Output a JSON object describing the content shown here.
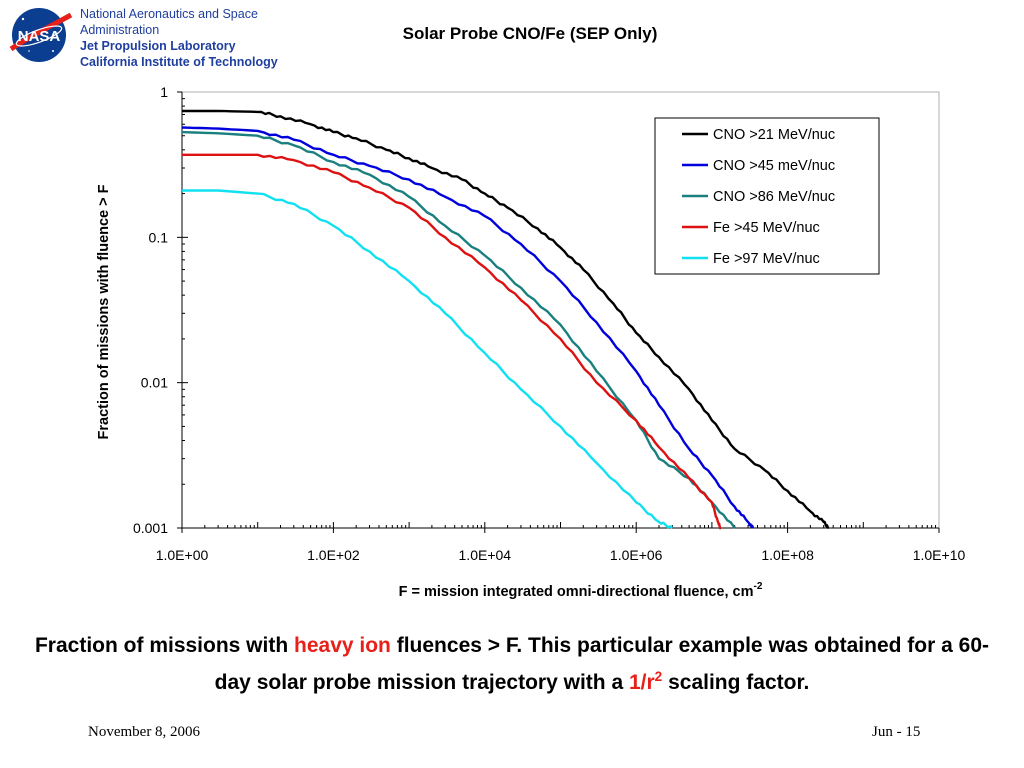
{
  "header": {
    "logo_text": "NASA",
    "org_line1": "National Aeronautics and Space",
    "org_line2": "Administration",
    "org_line3": "Jet Propulsion Laboratory",
    "org_line4": "California Institute of Technology"
  },
  "colors": {
    "org_blue": "#1f3f9f",
    "highlight_red": "#e8201a",
    "nasa_blue": "#0b3d91"
  },
  "chart_data": {
    "type": "line",
    "title": "Solar Probe CNO/Fe (SEP Only)",
    "xlabel": "F = mission integrated omni-directional fluence, cm",
    "xlabel_sup": "-2",
    "ylabel": "Fraction of missions with fluence > F",
    "xscale": "log",
    "yscale": "log",
    "xlim": [
      1,
      10000000000
    ],
    "ylim": [
      0.001,
      1
    ],
    "xticks": [
      {
        "value": 1,
        "label": "1.0E+00"
      },
      {
        "value": 100,
        "label": "1.0E+02"
      },
      {
        "value": 10000,
        "label": "1.0E+04"
      },
      {
        "value": 1000000,
        "label": "1.0E+06"
      },
      {
        "value": 100000000,
        "label": "1.0E+08"
      },
      {
        "value": 10000000000,
        "label": "1.0E+10"
      }
    ],
    "yticks": [
      {
        "value": 1,
        "label": "1"
      },
      {
        "value": 0.1,
        "label": "0.1"
      },
      {
        "value": 0.01,
        "label": "0.01"
      },
      {
        "value": 0.001,
        "label": "0.001"
      }
    ],
    "grid": false,
    "legend_position": "top-right",
    "series": [
      {
        "name": "CNO >21 MeV/nuc",
        "color": "#000000",
        "points": [
          [
            1,
            0.74
          ],
          [
            3,
            0.74
          ],
          [
            10,
            0.73
          ],
          [
            20,
            0.68
          ],
          [
            50,
            0.6
          ],
          [
            100,
            0.53
          ],
          [
            200,
            0.48
          ],
          [
            500,
            0.4
          ],
          [
            1000,
            0.35
          ],
          [
            2000,
            0.3
          ],
          [
            5000,
            0.25
          ],
          [
            10000,
            0.2
          ],
          [
            20000,
            0.16
          ],
          [
            50000,
            0.115
          ],
          [
            100000,
            0.085
          ],
          [
            200000,
            0.06
          ],
          [
            500000,
            0.035
          ],
          [
            1000000,
            0.022
          ],
          [
            2000000,
            0.015
          ],
          [
            5000000,
            0.009
          ],
          [
            10000000,
            0.0055
          ],
          [
            20000000,
            0.0035
          ],
          [
            50000000,
            0.0025
          ],
          [
            100000000,
            0.0018
          ],
          [
            200000000,
            0.0013
          ],
          [
            300000000,
            0.0011
          ],
          [
            350000000,
            0.001
          ]
        ]
      },
      {
        "name": "CNO >45 meV/nuc",
        "color": "#0000dd",
        "points": [
          [
            1,
            0.57
          ],
          [
            3,
            0.56
          ],
          [
            10,
            0.54
          ],
          [
            30,
            0.47
          ],
          [
            100,
            0.37
          ],
          [
            300,
            0.31
          ],
          [
            1000,
            0.25
          ],
          [
            3000,
            0.19
          ],
          [
            10000,
            0.14
          ],
          [
            30000,
            0.09
          ],
          [
            100000,
            0.05
          ],
          [
            300000,
            0.026
          ],
          [
            1000000,
            0.012
          ],
          [
            2000000,
            0.007
          ],
          [
            5000000,
            0.0035
          ],
          [
            10000000,
            0.0023
          ],
          [
            20000000,
            0.0014
          ],
          [
            30000000,
            0.0011
          ],
          [
            35000000,
            0.001
          ]
        ]
      },
      {
        "name": "CNO >86 MeV/nuc",
        "color": "#1a7f7f",
        "points": [
          [
            1,
            0.53
          ],
          [
            3,
            0.52
          ],
          [
            10,
            0.5
          ],
          [
            30,
            0.43
          ],
          [
            100,
            0.33
          ],
          [
            300,
            0.27
          ],
          [
            1000,
            0.19
          ],
          [
            3000,
            0.12
          ],
          [
            10000,
            0.075
          ],
          [
            30000,
            0.045
          ],
          [
            100000,
            0.025
          ],
          [
            300000,
            0.012
          ],
          [
            1000000,
            0.0055
          ],
          [
            2000000,
            0.003
          ],
          [
            5000000,
            0.0022
          ],
          [
            10000000,
            0.0015
          ],
          [
            20000000,
            0.001
          ]
        ]
      },
      {
        "name": "Fe >45 MeV/nuc",
        "color": "#dd1111",
        "points": [
          [
            1,
            0.37
          ],
          [
            3,
            0.37
          ],
          [
            10,
            0.37
          ],
          [
            30,
            0.34
          ],
          [
            100,
            0.28
          ],
          [
            300,
            0.22
          ],
          [
            1000,
            0.16
          ],
          [
            3000,
            0.1
          ],
          [
            10000,
            0.062
          ],
          [
            30000,
            0.037
          ],
          [
            100000,
            0.02
          ],
          [
            300000,
            0.01
          ],
          [
            1000000,
            0.0055
          ],
          [
            2000000,
            0.0036
          ],
          [
            5000000,
            0.0022
          ],
          [
            10000000,
            0.0015
          ],
          [
            12000000,
            0.0011
          ],
          [
            13000000,
            0.001
          ]
        ]
      },
      {
        "name": "Fe >97 MeV/nuc",
        "color": "#11e0f0",
        "points": [
          [
            1,
            0.21
          ],
          [
            3,
            0.21
          ],
          [
            10,
            0.2
          ],
          [
            30,
            0.17
          ],
          [
            100,
            0.12
          ],
          [
            300,
            0.08
          ],
          [
            1000,
            0.05
          ],
          [
            3000,
            0.03
          ],
          [
            10000,
            0.016
          ],
          [
            30000,
            0.009
          ],
          [
            100000,
            0.005
          ],
          [
            300000,
            0.0028
          ],
          [
            1000000,
            0.0015
          ],
          [
            2000000,
            0.0011
          ],
          [
            3000000,
            0.001
          ]
        ]
      }
    ]
  },
  "caption": {
    "part1": "Fraction of missions with ",
    "part2": "heavy ion",
    "part3": " fluences > F. This particular example was obtained for a 60-day solar probe mission trajectory with a ",
    "part4": "1/r",
    "part4_sup": "2",
    "part5": " scaling factor."
  },
  "footer": {
    "date": "November 8, 2006",
    "page": "Jun - 15"
  }
}
